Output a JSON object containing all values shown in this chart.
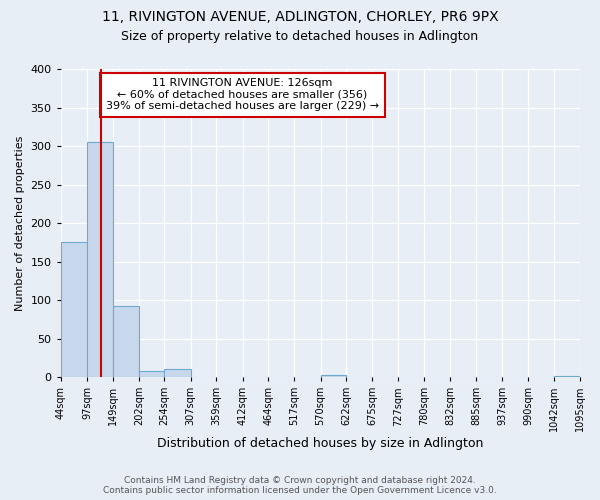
{
  "title1": "11, RIVINGTON AVENUE, ADLINGTON, CHORLEY, PR6 9PX",
  "title2": "Size of property relative to detached houses in Adlington",
  "xlabel": "Distribution of detached houses by size in Adlington",
  "ylabel": "Number of detached properties",
  "annotation_line1": "11 RIVINGTON AVENUE: 126sqm",
  "annotation_line2": "← 60% of detached houses are smaller (356)",
  "annotation_line3": "39% of semi-detached houses are larger (229) →",
  "bin_edges": [
    44,
    97,
    149,
    202,
    254,
    307,
    359,
    412,
    464,
    517,
    570,
    622,
    675,
    727,
    780,
    832,
    885,
    937,
    990,
    1042,
    1095
  ],
  "bin_counts": [
    175,
    305,
    92,
    8,
    10,
    0,
    0,
    0,
    0,
    0,
    3,
    0,
    0,
    0,
    0,
    0,
    0,
    0,
    0,
    2
  ],
  "bar_color": "#c8d8ec",
  "bar_edge_color": "#6fa8d0",
  "vline_color": "#cc0000",
  "vline_x": 126,
  "annotation_box_color": "#ffffff",
  "annotation_box_edge": "#cc0000",
  "footer_line1": "Contains HM Land Registry data © Crown copyright and database right 2024.",
  "footer_line2": "Contains public sector information licensed under the Open Government Licence v3.0.",
  "bg_color": "#e8eef6",
  "ylim": [
    0,
    400
  ],
  "yticks": [
    0,
    50,
    100,
    150,
    200,
    250,
    300,
    350,
    400
  ],
  "title1_fontsize": 10,
  "title2_fontsize": 9,
  "ylabel_fontsize": 8,
  "xlabel_fontsize": 9,
  "tick_fontsize": 7,
  "footer_fontsize": 6.5,
  "annotation_fontsize": 8
}
